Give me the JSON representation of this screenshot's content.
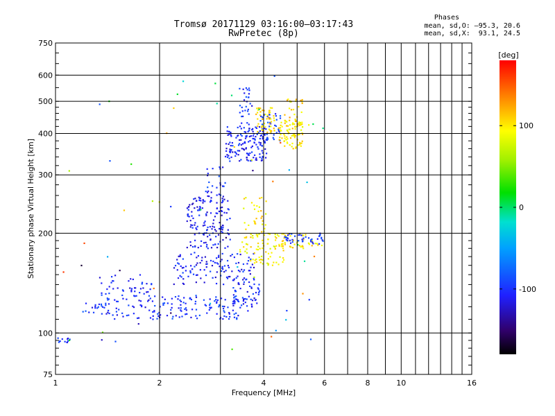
{
  "header": {
    "title_line1": "Tromsø 20171129 03:16:00–03:17:43",
    "title_line2": "RwPretec (8p)",
    "phases_label": "Phases",
    "phases_o": "mean, sd,O: –95.3, 20.6",
    "phases_x": "mean, sd,X:  93.1, 24.5"
  },
  "colors": {
    "gridline": "#000000",
    "background": "#ffffff"
  },
  "chart_data": {
    "type": "scatter",
    "title": "Tromsø 20171129 03:16:00–03:17:43",
    "subtitle": "RwPretec (8p)",
    "xlabel": "Frequency [MHz]",
    "ylabel": "Stationary phase Virtual Height [km]",
    "xscale": "log",
    "yscale": "log",
    "xlim": [
      1,
      16
    ],
    "ylim": [
      75,
      750
    ],
    "x_ticks": [
      1,
      2,
      4,
      6,
      8,
      10,
      16
    ],
    "x_tick_labels": [
      "1",
      "2",
      "4",
      "6",
      "8",
      "10",
      "16"
    ],
    "x_minor_ticks": [
      3,
      5,
      7,
      9,
      11,
      12,
      13,
      14,
      15
    ],
    "y_ticks": [
      75,
      100,
      200,
      300,
      400,
      500,
      600,
      750
    ],
    "y_tick_labels": [
      "75",
      "100",
      "200",
      "300",
      "400",
      "500",
      "600",
      "750"
    ],
    "grid": true,
    "colorbar": {
      "label": "[deg]",
      "range": [
        -180,
        180
      ],
      "ticks": [
        100,
        0,
        -100
      ],
      "tick_labels": [
        "100",
        "0",
        "-100"
      ]
    },
    "clusters": [
      {
        "fmin": 1.0,
        "fmax": 1.1,
        "hmin": 93,
        "hmax": 97,
        "phase": -100,
        "n": 12
      },
      {
        "fmin": 1.3,
        "fmax": 1.9,
        "hmin": 110,
        "hmax": 150,
        "phase": -105,
        "n": 90
      },
      {
        "fmin": 1.2,
        "fmax": 1.4,
        "hmin": 115,
        "hmax": 125,
        "phase": -100,
        "n": 14
      },
      {
        "fmin": 1.9,
        "fmax": 3.5,
        "hmin": 110,
        "hmax": 130,
        "phase": -100,
        "n": 120
      },
      {
        "fmin": 2.2,
        "fmax": 3.8,
        "hmin": 140,
        "hmax": 175,
        "phase": -105,
        "n": 120
      },
      {
        "fmin": 2.4,
        "fmax": 3.2,
        "hmin": 180,
        "hmax": 260,
        "phase": -110,
        "n": 150
      },
      {
        "fmin": 2.7,
        "fmax": 3.1,
        "hmin": 260,
        "hmax": 320,
        "phase": -100,
        "n": 25
      },
      {
        "fmin": 3.1,
        "fmax": 4.1,
        "hmin": 330,
        "hmax": 420,
        "phase": -105,
        "n": 150
      },
      {
        "fmin": 3.4,
        "fmax": 3.7,
        "hmin": 420,
        "hmax": 550,
        "phase": -100,
        "n": 30
      },
      {
        "fmin": 3.9,
        "fmax": 4.5,
        "hmin": 380,
        "hmax": 460,
        "phase": -95,
        "n": 40
      },
      {
        "fmin": 3.8,
        "fmax": 4.3,
        "hmin": 400,
        "hmax": 480,
        "phase": 105,
        "n": 50
      },
      {
        "fmin": 4.4,
        "fmax": 5.2,
        "hmin": 360,
        "hmax": 440,
        "phase": 100,
        "n": 90
      },
      {
        "fmin": 4.6,
        "fmax": 5.2,
        "hmin": 440,
        "hmax": 510,
        "phase": 110,
        "n": 20
      },
      {
        "fmin": 3.4,
        "fmax": 4.6,
        "hmin": 160,
        "hmax": 200,
        "phase": 95,
        "n": 80
      },
      {
        "fmin": 3.5,
        "fmax": 4.1,
        "hmin": 200,
        "hmax": 260,
        "phase": 100,
        "n": 30
      },
      {
        "fmin": 4.3,
        "fmax": 5.9,
        "hmin": 180,
        "hmax": 200,
        "phase": 100,
        "n": 50
      },
      {
        "fmin": 4.6,
        "fmax": 6.0,
        "hmin": 185,
        "hmax": 200,
        "phase": -100,
        "n": 40
      },
      {
        "fmin": 3.2,
        "fmax": 3.9,
        "hmin": 120,
        "hmax": 145,
        "phase": -105,
        "n": 50
      },
      {
        "fmin": 1.0,
        "fmax": 6.0,
        "hmin": 85,
        "hmax": 600,
        "phase": 0,
        "n": 60
      }
    ]
  }
}
